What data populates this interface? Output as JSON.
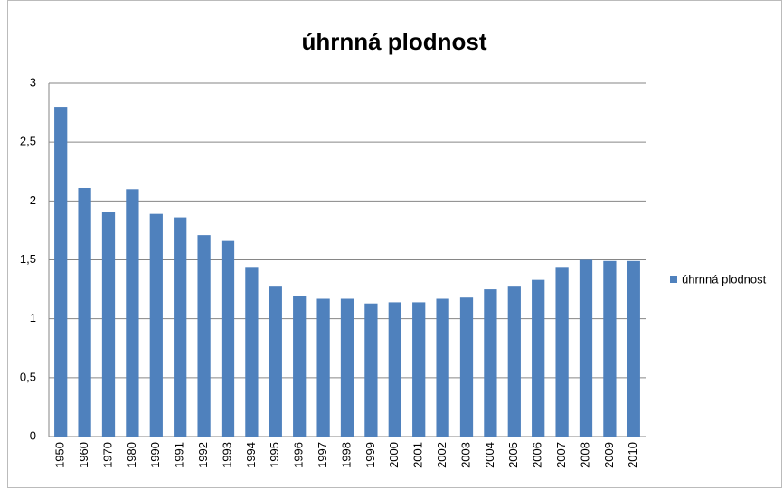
{
  "chart_data": {
    "type": "bar",
    "title": "úhrnná plodnost",
    "categories": [
      "1950",
      "1960",
      "1970",
      "1980",
      "1990",
      "1991",
      "1992",
      "1993",
      "1994",
      "1995",
      "1996",
      "1997",
      "1998",
      "1999",
      "2000",
      "2001",
      "2002",
      "2003",
      "2004",
      "2005",
      "2006",
      "2007",
      "2008",
      "2009",
      "2010"
    ],
    "series": [
      {
        "name": "úhrnná plodnost",
        "color": "#4f81bd",
        "values": [
          2.8,
          2.11,
          1.91,
          2.1,
          1.89,
          1.86,
          1.71,
          1.66,
          1.44,
          1.28,
          1.19,
          1.17,
          1.17,
          1.13,
          1.14,
          1.14,
          1.17,
          1.18,
          1.25,
          1.28,
          1.33,
          1.44,
          1.5,
          1.49,
          1.49
        ]
      }
    ],
    "ylim": [
      0,
      3
    ],
    "yticks": [
      0,
      {
        "value": 0.5,
        "label": "0,5"
      },
      1,
      {
        "value": 1.5,
        "label": "1,5"
      },
      2,
      {
        "value": 2.5,
        "label": "2,5"
      },
      3
    ],
    "grid": true,
    "legend": "right"
  }
}
